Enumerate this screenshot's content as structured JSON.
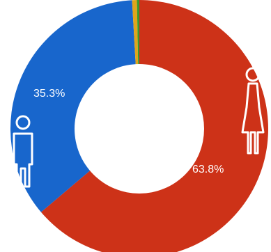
{
  "chart_data": {
    "type": "pie",
    "donut": true,
    "start_angle_deg": 0,
    "direction": "clockwise",
    "slices": [
      {
        "label": "",
        "value": 63.8,
        "display": "63.8%",
        "color": "#cd3218"
      },
      {
        "label": "",
        "value": 35.3,
        "display": "35.3%",
        "color": "#1866cc"
      },
      {
        "label": "",
        "value": 0.6,
        "display": "",
        "color": "#e0a51a"
      },
      {
        "label": "",
        "value": 0.3,
        "display": "",
        "color": "#3a9a2e"
      }
    ],
    "icons": [
      {
        "name": "female-icon",
        "slice": 0
      },
      {
        "name": "male-icon",
        "slice": 1
      }
    ],
    "title": "",
    "legend": "none"
  }
}
